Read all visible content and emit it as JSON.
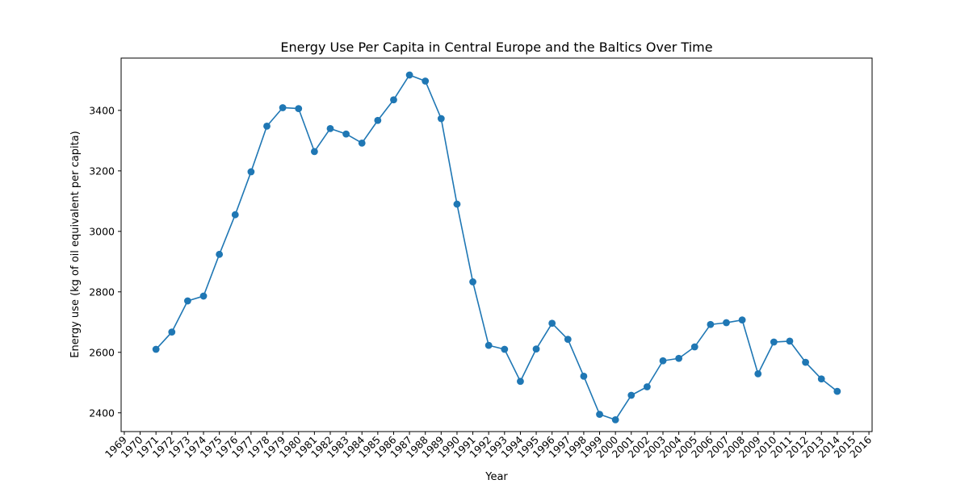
{
  "chart_data": {
    "type": "line",
    "title": "Energy Use Per Capita in Central Europe and the Baltics Over Time",
    "xlabel": "Year",
    "ylabel": "Energy use (kg of oil equivalent per capita)",
    "x_ticks": [
      "1969",
      "1970",
      "1971",
      "1972",
      "1973",
      "1974",
      "1975",
      "1976",
      "1977",
      "1978",
      "1979",
      "1980",
      "1981",
      "1982",
      "1983",
      "1984",
      "1985",
      "1986",
      "1987",
      "1988",
      "1989",
      "1990",
      "1991",
      "1992",
      "1993",
      "1994",
      "1995",
      "1996",
      "1997",
      "1998",
      "1999",
      "2000",
      "2001",
      "2002",
      "2003",
      "2004",
      "2005",
      "2006",
      "2007",
      "2008",
      "2009",
      "2010",
      "2011",
      "2012",
      "2013",
      "2014",
      "2015",
      "2016"
    ],
    "y_ticks": [
      2400,
      2600,
      2800,
      3000,
      3200,
      3400
    ],
    "xlim": [
      1968.8,
      2016.2
    ],
    "ylim": [
      2338,
      3573
    ],
    "grid": false,
    "color": "#1f77b4",
    "series": [
      {
        "x": [
          1971,
          1972,
          1973,
          1974,
          1975,
          1976,
          1977,
          1978,
          1979,
          1980,
          1981,
          1982,
          1983,
          1984,
          1985,
          1986,
          1987,
          1988,
          1989,
          1990,
          1991,
          1992,
          1993,
          1994,
          1995,
          1996,
          1997,
          1998,
          1999,
          2000,
          2001,
          2002,
          2003,
          2004,
          2005,
          2006,
          2007,
          2008,
          2009,
          2010,
          2011,
          2012,
          2013,
          2014
        ],
        "values": [
          2610,
          2667,
          2770,
          2786,
          2924,
          3055,
          3197,
          3348,
          3409,
          3406,
          3264,
          3340,
          3322,
          3292,
          3367,
          3435,
          3517,
          3497,
          3373,
          3090,
          2833,
          2623,
          2610,
          2504,
          2611,
          2696,
          2643,
          2521,
          2395,
          2377,
          2458,
          2486,
          2572,
          2580,
          2618,
          2692,
          2698,
          2707,
          2529,
          2634,
          2637,
          2567,
          2512,
          2471
        ]
      }
    ]
  }
}
